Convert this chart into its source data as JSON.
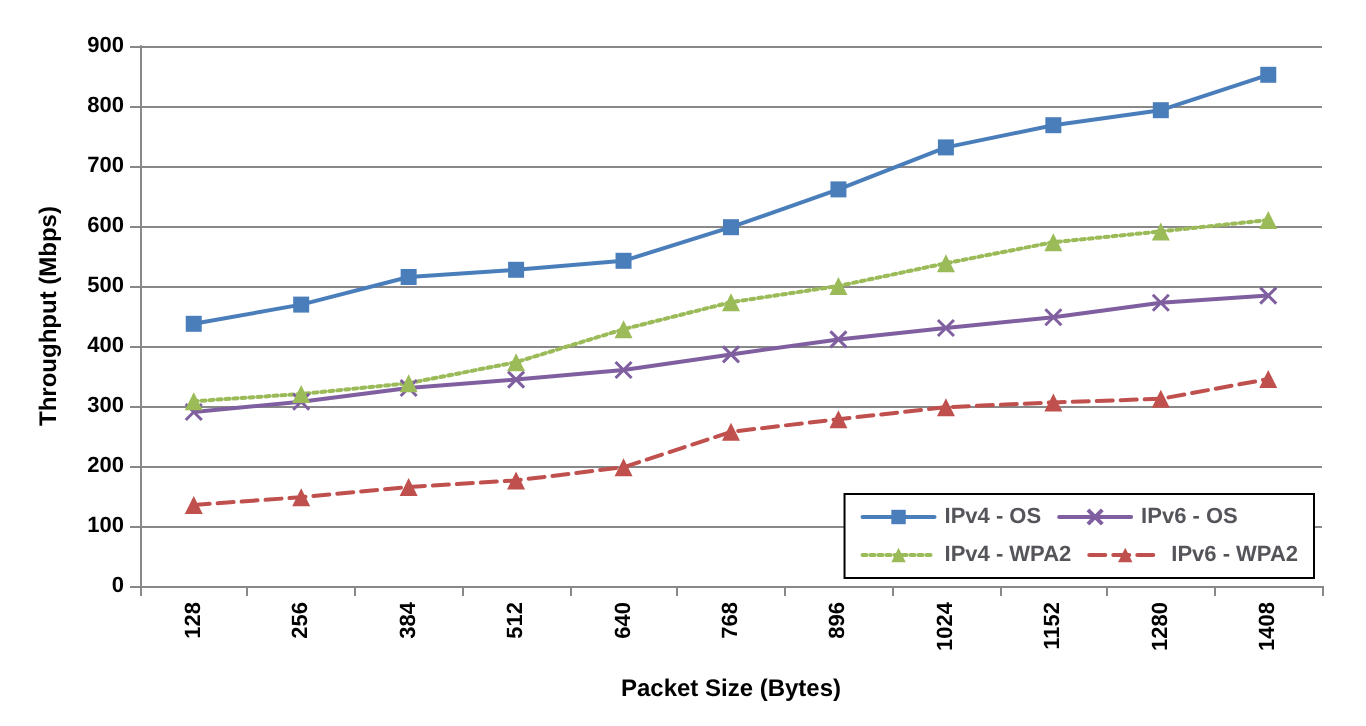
{
  "chart_data": {
    "type": "line",
    "xlabel": "Packet Size (Bytes)",
    "ylabel": "Throughput (Mbps)",
    "categories": [
      "128",
      "256",
      "384",
      "512",
      "640",
      "768",
      "896",
      "1024",
      "1152",
      "1280",
      "1408"
    ],
    "ylim": [
      0,
      900
    ],
    "yticks": [
      0,
      100,
      200,
      300,
      400,
      500,
      600,
      700,
      800,
      900
    ],
    "grid": "y",
    "legend": "bottom right",
    "series": [
      {
        "name": "IPv4 - OS",
        "color": "#4a7ebb",
        "marker": "square",
        "line_style": "solid",
        "values": [
          437,
          469,
          515,
          527,
          542,
          598,
          661,
          731,
          768,
          793,
          852
        ]
      },
      {
        "name": "IPv6 - OS",
        "color": "#7f5f9f",
        "marker": "cross",
        "line_style": "solid",
        "values": [
          290,
          307,
          330,
          344,
          360,
          386,
          411,
          430,
          448,
          472,
          484
        ]
      },
      {
        "name": "IPv4 - WPA2",
        "color": "#9bbb59",
        "marker": "triangle",
        "line_style": "dotted",
        "values": [
          308,
          320,
          338,
          373,
          428,
          473,
          500,
          538,
          573,
          591,
          610
        ]
      },
      {
        "name": "IPv6 - WPA2",
        "color": "#c0504d",
        "marker": "triangle",
        "line_style": "dashed",
        "values": [
          135,
          148,
          165,
          176,
          198,
          257,
          278,
          298,
          306,
          312,
          345
        ]
      }
    ]
  }
}
